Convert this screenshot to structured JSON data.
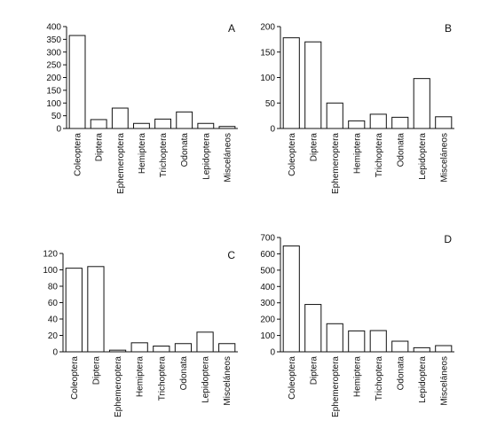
{
  "chart_data": [
    {
      "type": "bar",
      "panel": "A",
      "categories": [
        "Coleoptera",
        "Diptera",
        "Ephemeroptera",
        "Hemiptera",
        "Trichoptera",
        "Odonata",
        "Lepidoptera",
        "Misceláneos"
      ],
      "values": [
        365,
        35,
        80,
        20,
        37,
        65,
        20,
        8
      ],
      "ylim": [
        0,
        400
      ],
      "yticks": [
        0,
        50,
        100,
        150,
        200,
        250,
        300,
        350,
        400
      ]
    },
    {
      "type": "bar",
      "panel": "B",
      "categories": [
        "Coleoptera",
        "Diptera",
        "Ephemeroptera",
        "Hemiptera",
        "Trichoptera",
        "Odonata",
        "Lepidoptera",
        "Misceláneos"
      ],
      "values": [
        178,
        170,
        50,
        15,
        28,
        22,
        98,
        23
      ],
      "ylim": [
        0,
        200
      ],
      "yticks": [
        0,
        50,
        100,
        150,
        200
      ]
    },
    {
      "type": "bar",
      "panel": "C",
      "categories": [
        "Coleoptera",
        "Diptera",
        "Ephemeroptera",
        "Hemiptera",
        "Trichoptera",
        "Odonata",
        "Lepidoptera",
        "Misceláneos"
      ],
      "values": [
        102,
        104,
        2,
        11,
        7,
        10,
        24,
        10
      ],
      "ylim": [
        0,
        120
      ],
      "yticks": [
        0,
        20,
        40,
        60,
        80,
        100,
        120
      ]
    },
    {
      "type": "bar",
      "panel": "D",
      "categories": [
        "Coleoptera",
        "Diptera",
        "Ephemeroptera",
        "Hemiptera",
        "Trichoptera",
        "Odonata",
        "Lepidoptera",
        "Misceláneos"
      ],
      "values": [
        648,
        290,
        172,
        128,
        130,
        65,
        25,
        38
      ],
      "ylim": [
        0,
        700
      ],
      "yticks": [
        0,
        100,
        200,
        300,
        400,
        500,
        600,
        700
      ]
    }
  ]
}
